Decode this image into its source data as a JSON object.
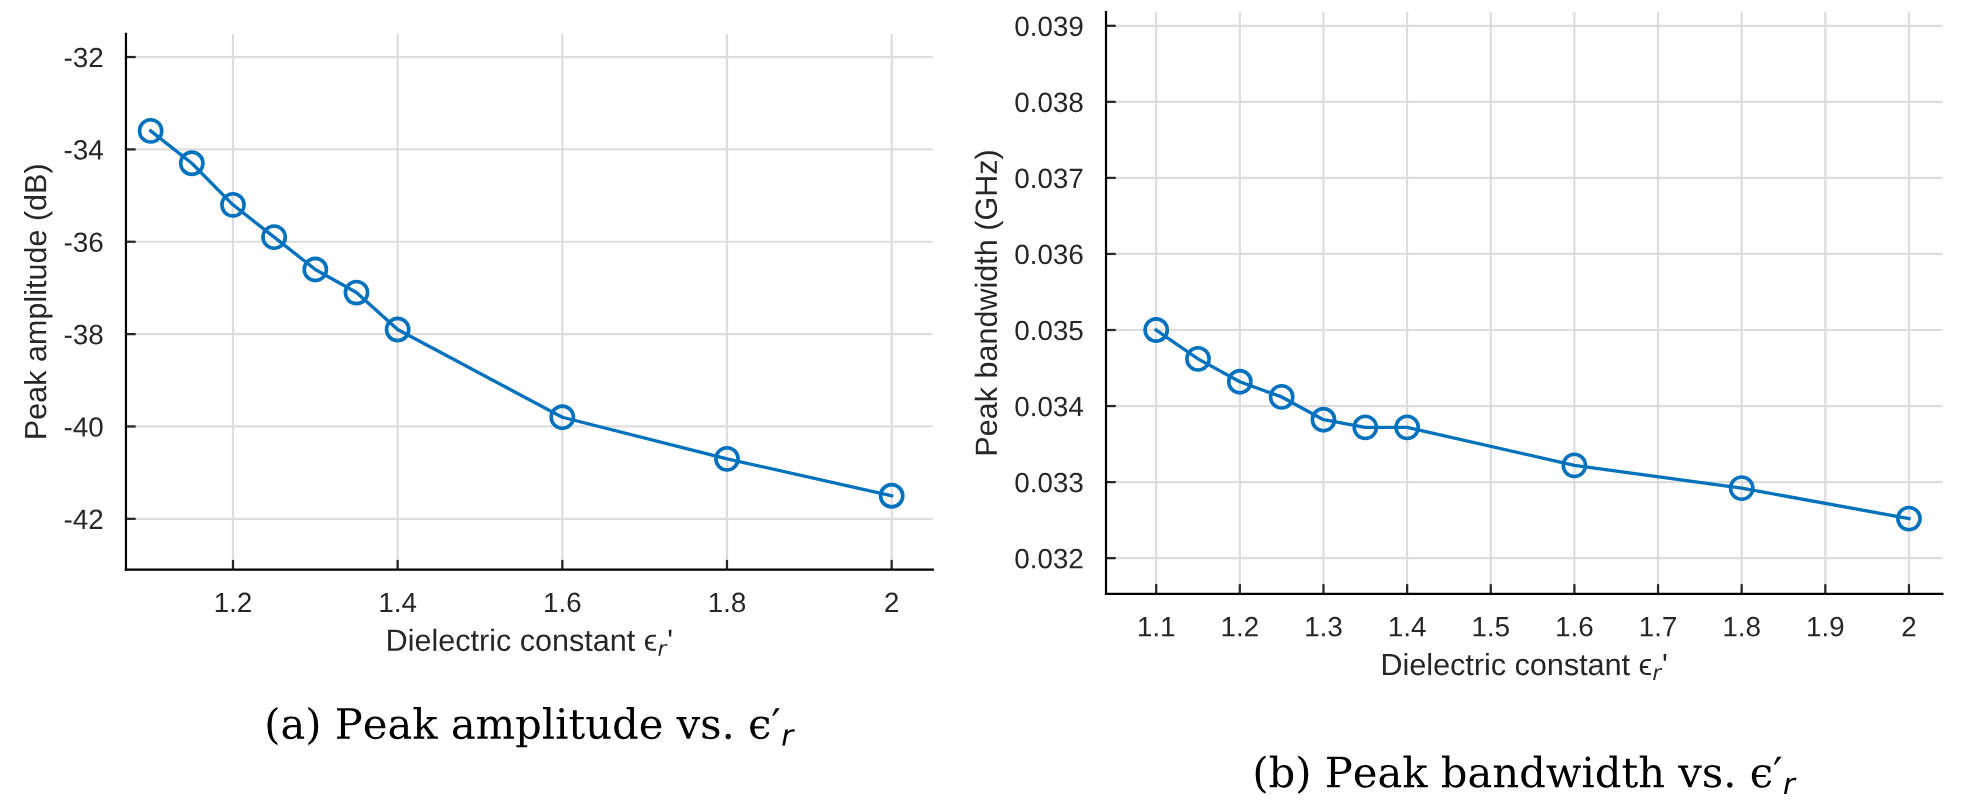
{
  "chart_data": [
    {
      "type": "line",
      "title": "(a) Peak amplitude vs. ϵ′$_{r}$",
      "xlabel": "Dielectric constant ϵ$_{r}$'",
      "ylabel": "Peak amplitude (dB)",
      "x": [
        1.1,
        1.15,
        1.2,
        1.25,
        1.3,
        1.35,
        1.4,
        1.6,
        1.8,
        2.0
      ],
      "series": [
        {
          "color": "#0072bd",
          "values": [
            -33.6,
            -34.3,
            -35.2,
            -35.9,
            -36.6,
            -37.1,
            -37.9,
            -39.8,
            -40.7,
            -41.5
          ]
        }
      ],
      "xlim": [
        1.07,
        2.05
      ],
      "xticks": [
        1.2,
        1.4,
        1.6,
        1.8,
        2
      ],
      "ylim": [
        -43.1,
        -31.5
      ],
      "yticks": [
        -42,
        -40,
        -38,
        -36,
        -34,
        -32
      ],
      "grid": true,
      "marker": "circle",
      "line_style": "solid"
    },
    {
      "type": "line",
      "title": "(b) Peak bandwidth vs. ϵ′$_{r}$",
      "xlabel": "Dielectric constant ϵ$_{r}$'",
      "ylabel": "Peak bandwidth (GHz)",
      "x": [
        1.1,
        1.15,
        1.2,
        1.25,
        1.3,
        1.35,
        1.4,
        1.6,
        1.8,
        2.0
      ],
      "series": [
        {
          "color": "#0072bd",
          "values": [
            0.035,
            0.03462,
            0.03432,
            0.03412,
            0.03382,
            0.03372,
            0.03372,
            0.03322,
            0.03292,
            0.03252
          ]
        }
      ],
      "xlim": [
        1.04,
        2.04
      ],
      "xticks": [
        1.1,
        1.2,
        1.3,
        1.4,
        1.5,
        1.6,
        1.7,
        1.8,
        1.9,
        2
      ],
      "ylim": [
        0.03153,
        0.03918
      ],
      "yticks": [
        0.032,
        0.033,
        0.034,
        0.035,
        0.036,
        0.037,
        0.038,
        0.039
      ],
      "grid": true,
      "marker": "circle",
      "line_style": "solid"
    }
  ]
}
